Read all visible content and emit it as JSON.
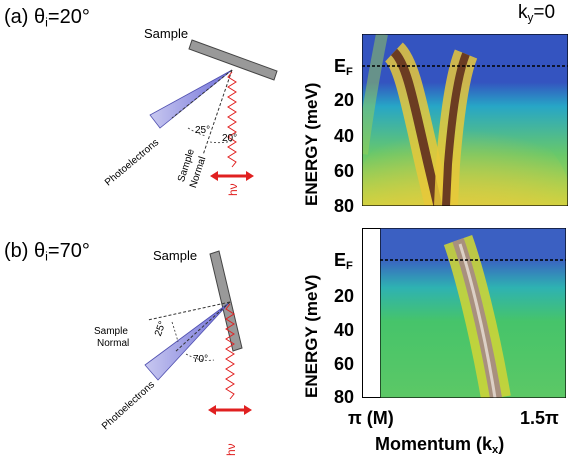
{
  "figure": {
    "panel_a": {
      "letter": "(a)",
      "angle_symbol": "θ",
      "angle_sub": "i",
      "angle_value": "=20°",
      "sample": "Sample",
      "photoelectrons": "Photoelectrons",
      "sample_normal_1": "Sample",
      "sample_normal_2": "Normal",
      "angle1": "25°",
      "angle2": "20°",
      "hv": "hν"
    },
    "panel_b": {
      "letter": "(b)",
      "angle_symbol": "θ",
      "angle_sub": "i",
      "angle_value": "=70°",
      "sample": "Sample",
      "photoelectrons": "Photoelectrons",
      "sample_normal_1": "Sample",
      "sample_normal_2": "Normal",
      "angle1": "25°",
      "angle2": "70°",
      "hv": "hν"
    },
    "ky_main": "k",
    "ky_sub": "y",
    "ky_value": "=0"
  },
  "chart_data": [
    {
      "type": "heatmap",
      "ylabel": "ENERGY (meV)",
      "ef_label": "E",
      "ef_sub": "F",
      "yticks": [
        "20",
        "40",
        "60",
        "80"
      ],
      "ylim": [
        0,
        80
      ],
      "features": [
        {
          "kind": "band",
          "shape": "two parabolic-like branches",
          "peak_energy_meV": -4
        }
      ],
      "colors": {
        "background": "#3150b8",
        "low": "#23b0c8",
        "mid": "#8ccc3c",
        "high": "#f0d030",
        "peak": "#6a3820"
      }
    },
    {
      "type": "heatmap",
      "ylabel": "ENERGY (meV)",
      "ef_label": "E",
      "ef_sub": "F",
      "yticks": [
        "20",
        "40",
        "60",
        "80"
      ],
      "ylim": [
        0,
        80
      ],
      "xlabel_main": "Momentum (k",
      "xlabel_sub": "x",
      "xlabel_end": ")",
      "xticks_left": "π (M)",
      "xticks_right": "1.5π",
      "features": [
        {
          "kind": "band",
          "shape": "single dispersing branch",
          "peak_energy_meV": -4
        }
      ],
      "colors": {
        "background": "#3a5ec0",
        "low": "#2fb0b4",
        "mid": "#5cc866",
        "high": "#e8d840",
        "peak": "#a09090"
      }
    }
  ]
}
